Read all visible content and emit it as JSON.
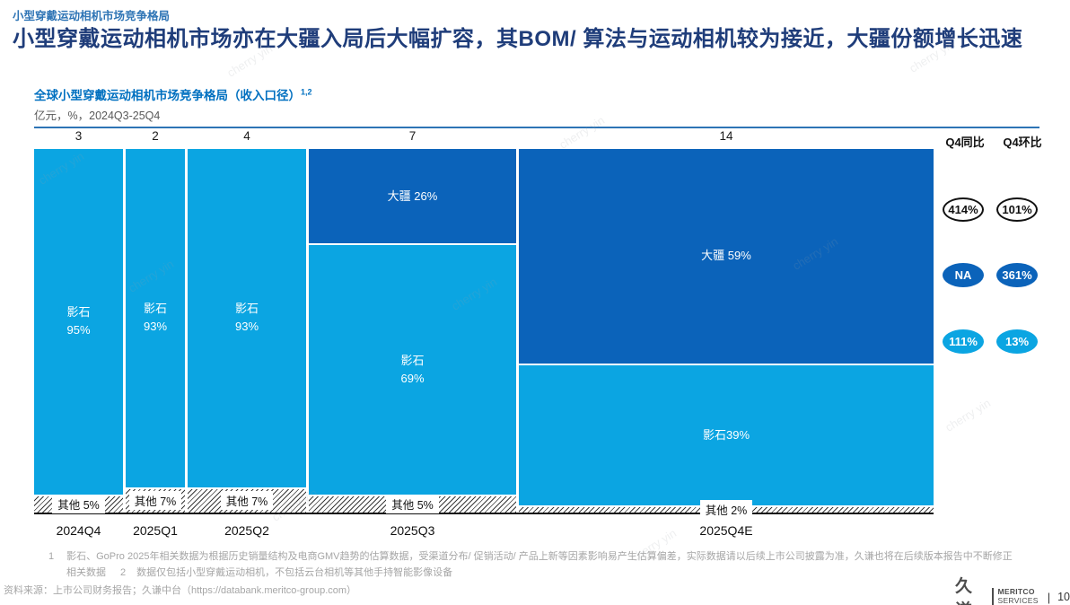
{
  "page": {
    "eyebrow": "小型穿戴运动相机市场竞争格局",
    "title": "小型穿戴运动相机市场亦在大疆入局后大幅扩容，其BOM/ 算法与运动相机较为接近，大疆份额增长迅速",
    "watermark": "cherry yin",
    "page_number": "10",
    "logo": {
      "cn": "久谦",
      "en_line1": "MERITCO",
      "en_line2": "SERVICES"
    }
  },
  "chart": {
    "title": "全球小型穿戴运动相机市场竞争格局（收入口径）",
    "title_superscript": "1,2",
    "subtitle": "亿元，%，2024Q3-25Q4"
  },
  "chart_data": {
    "type": "marimekko-stacked-bar",
    "title": "全球小型穿戴运动相机市场竞争格局（收入口径）",
    "unit": "亿元，%",
    "period": "2024Q3-25Q4",
    "total_sum": 30,
    "colors": {
      "dji": "#0b63ba",
      "insta": "#0ba5e2",
      "other": "hatch-diagonal"
    },
    "categories": [
      "2024Q4",
      "2025Q1",
      "2025Q2",
      "2025Q3",
      "2025Q4E"
    ],
    "column_totals": [
      3,
      2,
      4,
      7,
      14
    ],
    "series": [
      {
        "name": "大疆",
        "values_pct": [
          0,
          0,
          0,
          26,
          59
        ]
      },
      {
        "name": "影石",
        "values_pct": [
          95,
          93,
          93,
          69,
          39
        ]
      },
      {
        "name": "其他",
        "values_pct": [
          5,
          7,
          7,
          5,
          2
        ]
      }
    ],
    "columns": [
      {
        "category": "2024Q4",
        "total": "3",
        "segments": [
          {
            "type": "insta",
            "name": "影石",
            "pct": 95,
            "label": "影石\n95%"
          },
          {
            "type": "other",
            "name": "其他",
            "pct": 5,
            "chip": "其他 5%"
          }
        ]
      },
      {
        "category": "2025Q1",
        "total": "2",
        "segments": [
          {
            "type": "insta",
            "name": "影石",
            "pct": 93,
            "label": "影石\n93%"
          },
          {
            "type": "other",
            "name": "其他",
            "pct": 7,
            "chip": "其他 7%"
          }
        ]
      },
      {
        "category": "2025Q2",
        "total": "4",
        "segments": [
          {
            "type": "insta",
            "name": "影石",
            "pct": 93,
            "label": "影石\n93%"
          },
          {
            "type": "other",
            "name": "其他",
            "pct": 7,
            "chip": "其他 7%"
          }
        ]
      },
      {
        "category": "2025Q3",
        "total": "7",
        "segments": [
          {
            "type": "dji",
            "name": "大疆",
            "pct": 26,
            "label": "大疆 26%"
          },
          {
            "type": "insta",
            "name": "影石",
            "pct": 69,
            "label": "影石\n69%"
          },
          {
            "type": "other",
            "name": "其他",
            "pct": 5,
            "chip": "其他 5%"
          }
        ]
      },
      {
        "category": "2025Q4E",
        "total": "14",
        "segments": [
          {
            "type": "dji",
            "name": "大疆",
            "pct": 59,
            "label": "大疆 59%"
          },
          {
            "type": "insta",
            "name": "影石",
            "pct": 39,
            "label": "影石39%"
          },
          {
            "type": "other",
            "name": "其他",
            "pct": 2,
            "chip": "其他 2%"
          }
        ]
      }
    ]
  },
  "right_panel": {
    "col_headers": [
      "Q4同比",
      "Q4环比"
    ],
    "rows": [
      {
        "style": "outline",
        "values": [
          "414%",
          "101%"
        ]
      },
      {
        "style": "dark",
        "values": [
          "NA",
          "361%"
        ]
      },
      {
        "style": "light",
        "values": [
          "111%",
          "13%"
        ]
      }
    ]
  },
  "footnotes": {
    "note1_num": "1",
    "note1_text": "影石、GoPro 2025年相关数据为根据历史销量结构及电商GMV趋势的估算数据，受渠道分布/ 促销活动/ 产品上新等因素影响易产生估算偏差，实际数据请以后续上市公司披露为准，久谦也将在后续版本报告中不断修正相关数据",
    "note2_num": "2",
    "note2_text": "数据仅包括小型穿戴运动相机，不包括云台相机等其他手持智能影像设备"
  },
  "source": "资料来源：上市公司财务报告；久谦中台（https://databank.meritco-group.com）"
}
